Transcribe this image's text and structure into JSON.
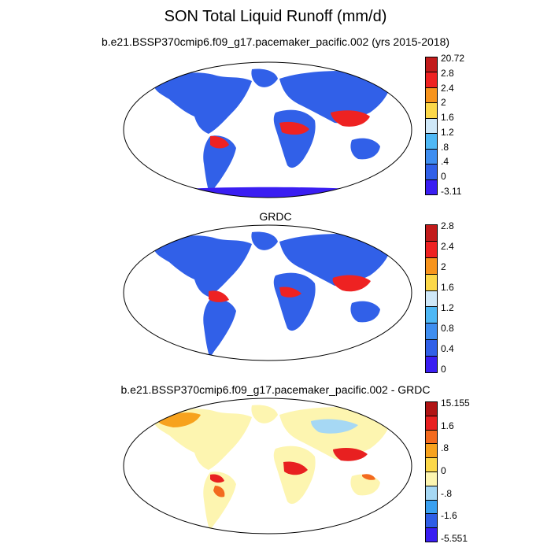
{
  "title": "SON Total Liquid Runoff (mm/d)",
  "panels": [
    {
      "subtitle": "b.e21.BSSP370cmip6.f09_g17.pacemaker_pacific.002 (yrs 2015-2018)",
      "colorbar": {
        "colors": [
          "#3a1ef2",
          "#3160e8",
          "#3f8ef0",
          "#4fb8f5",
          "#cfe8f8",
          "#fcd84a",
          "#f7941d",
          "#ee2222",
          "#c21b1b"
        ],
        "labels": [
          "20.72",
          "2.8",
          "2.4",
          "2",
          "1.6",
          "1.2",
          ".8",
          ".4",
          "0",
          "-3.11"
        ]
      }
    },
    {
      "subtitle": "GRDC",
      "colorbar": {
        "colors": [
          "#3a1ef2",
          "#3160e8",
          "#3f8ef0",
          "#4fb8f5",
          "#cfe8f8",
          "#fcd84a",
          "#f7941d",
          "#ee2222",
          "#c21b1b"
        ],
        "labels": [
          "2.8",
          "2.4",
          "2",
          "1.6",
          "1.2",
          "0.8",
          "0.4",
          "0"
        ]
      }
    },
    {
      "subtitle": "b.e21.BSSP370cmip6.f09_g17.pacemaker_pacific.002 - GRDC",
      "colorbar": {
        "colors": [
          "#3a1ef2",
          "#2f5ee6",
          "#3aa0f0",
          "#a6d8f4",
          "#fdf5b0",
          "#fcd84a",
          "#f7a21d",
          "#f36a1e",
          "#e82020",
          "#b01414"
        ],
        "labels": [
          "15.155",
          "1.6",
          ".8",
          "0",
          "-.8",
          "-1.6",
          "-5.551"
        ]
      }
    }
  ],
  "colors": {
    "ocean": "#ffffff",
    "land_mask": "#ffffff"
  }
}
